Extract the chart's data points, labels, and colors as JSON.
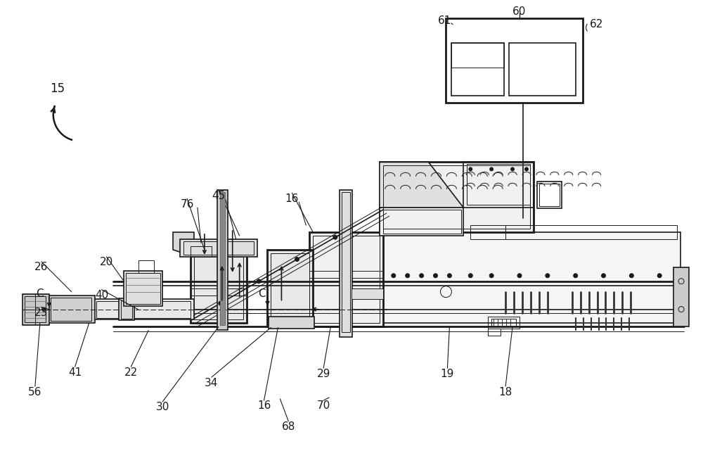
{
  "bg_color": "#ffffff",
  "lc": "#1a1a1a",
  "gc": "#666666",
  "lgc": "#aaaaaa",
  "darkgray": "#444444",
  "fig_w": 10.0,
  "fig_h": 6.68,
  "dpi": 100
}
